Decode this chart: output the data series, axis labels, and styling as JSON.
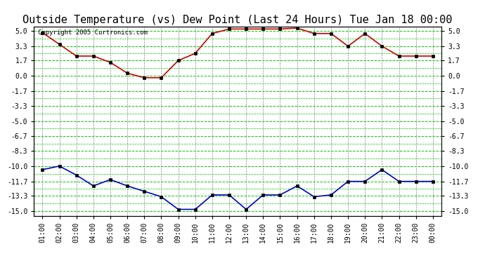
{
  "title": "Outside Temperature (vs) Dew Point (Last 24 Hours) Tue Jan 18 00:00",
  "copyright": "Copyright 2005 Curtronics.com",
  "x_labels": [
    "01:00",
    "02:00",
    "03:00",
    "04:00",
    "05:00",
    "06:00",
    "07:00",
    "08:00",
    "09:00",
    "10:00",
    "11:00",
    "12:00",
    "13:00",
    "14:00",
    "15:00",
    "16:00",
    "17:00",
    "18:00",
    "19:00",
    "20:00",
    "21:00",
    "22:00",
    "23:00",
    "00:00"
  ],
  "temp_data": [
    4.8,
    3.5,
    2.2,
    2.2,
    1.5,
    0.3,
    -0.2,
    -0.2,
    1.7,
    2.5,
    4.7,
    5.2,
    5.2,
    5.2,
    5.2,
    5.3,
    4.7,
    4.7,
    3.3,
    4.7,
    3.3,
    2.2,
    2.2,
    2.2
  ],
  "dew_data": [
    -10.4,
    -10.0,
    -11.0,
    -12.2,
    -11.5,
    -12.2,
    -12.8,
    -13.4,
    -14.8,
    -14.8,
    -13.2,
    -13.2,
    -14.8,
    -13.2,
    -13.2,
    -12.2,
    -13.4,
    -13.2,
    -11.7,
    -11.7,
    -10.4,
    -11.7,
    -11.7,
    -11.7
  ],
  "temp_color": "#cc0000",
  "dew_color": "#0000cc",
  "bg_color": "#ffffff",
  "grid_h_color": "#00cc00",
  "grid_v_color": "#888888",
  "yticks": [
    5.0,
    3.3,
    1.7,
    0.0,
    -1.7,
    -3.3,
    -5.0,
    -6.7,
    -8.3,
    -10.0,
    -11.7,
    -13.3,
    -15.0
  ],
  "ylim": [
    -15.5,
    5.5
  ],
  "title_fontsize": 11,
  "marker": "s",
  "marker_size": 2.5
}
